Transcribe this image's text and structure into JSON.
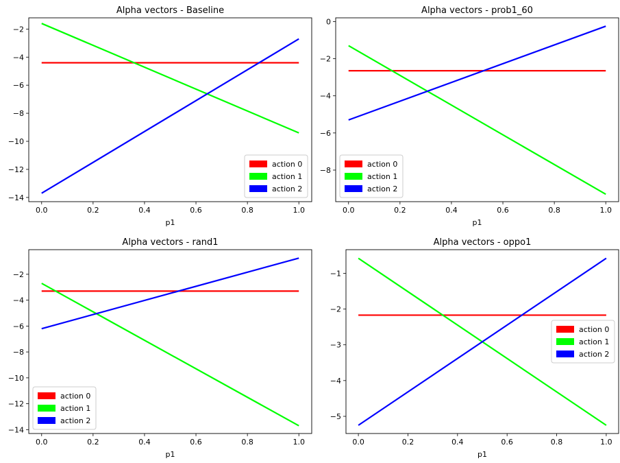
{
  "chart_data": [
    {
      "type": "line",
      "title": "Alpha vectors - Baseline",
      "xlabel": "p1",
      "ylabel": "",
      "xlim": [
        -0.05,
        1.05
      ],
      "ylim": [
        -14.3,
        -1.2
      ],
      "xticks": [
        0.0,
        0.2,
        0.4,
        0.6,
        0.8,
        1.0
      ],
      "xticklabels": [
        "0.0",
        "0.2",
        "0.4",
        "0.6",
        "0.8",
        "1.0"
      ],
      "yticks": [
        -14,
        -12,
        -10,
        -8,
        -6,
        -4,
        -2
      ],
      "yticklabels": [
        "−14",
        "−12",
        "−10",
        "−8",
        "−6",
        "−4",
        "−2"
      ],
      "grid": false,
      "legend_position": "lower right",
      "series": [
        {
          "name": "action 0",
          "color": "#ff0000",
          "x": [
            0.0,
            1.0
          ],
          "y": [
            -4.4,
            -4.4
          ]
        },
        {
          "name": "action 1",
          "color": "#00ff00",
          "x": [
            0.0,
            1.0
          ],
          "y": [
            -1.6,
            -9.4
          ]
        },
        {
          "name": "action 2",
          "color": "#0000ff",
          "x": [
            0.0,
            1.0
          ],
          "y": [
            -13.7,
            -2.7
          ]
        }
      ]
    },
    {
      "type": "line",
      "title": "Alpha vectors - prob1_60",
      "xlabel": "p1",
      "ylabel": "",
      "xlim": [
        -0.05,
        1.05
      ],
      "ylim": [
        -9.7,
        0.2
      ],
      "xticks": [
        0.0,
        0.2,
        0.4,
        0.6,
        0.8,
        1.0
      ],
      "xticklabels": [
        "0.0",
        "0.2",
        "0.4",
        "0.6",
        "0.8",
        "1.0"
      ],
      "yticks": [
        -8,
        -6,
        -4,
        -2,
        0
      ],
      "yticklabels": [
        "−8",
        "−6",
        "−4",
        "−2",
        "0"
      ],
      "grid": false,
      "legend_position": "lower left",
      "series": [
        {
          "name": "action 0",
          "color": "#ff0000",
          "x": [
            0.0,
            1.0
          ],
          "y": [
            -2.65,
            -2.65
          ]
        },
        {
          "name": "action 1",
          "color": "#00ff00",
          "x": [
            0.0,
            1.0
          ],
          "y": [
            -1.3,
            -9.3
          ]
        },
        {
          "name": "action 2",
          "color": "#0000ff",
          "x": [
            0.0,
            1.0
          ],
          "y": [
            -5.3,
            -0.25
          ]
        }
      ]
    },
    {
      "type": "line",
      "title": "Alpha vectors - rand1",
      "xlabel": "p1",
      "ylabel": "",
      "xlim": [
        -0.05,
        1.05
      ],
      "ylim": [
        -14.3,
        -0.1
      ],
      "xticks": [
        0.0,
        0.2,
        0.4,
        0.6,
        0.8,
        1.0
      ],
      "xticklabels": [
        "0.0",
        "0.2",
        "0.4",
        "0.6",
        "0.8",
        "1.0"
      ],
      "yticks": [
        -14,
        -12,
        -10,
        -8,
        -6,
        -4,
        -2
      ],
      "yticklabels": [
        "−14",
        "−12",
        "−10",
        "−8",
        "−6",
        "−4",
        "−2"
      ],
      "grid": false,
      "legend_position": "lower left",
      "series": [
        {
          "name": "action 0",
          "color": "#ff0000",
          "x": [
            0.0,
            1.0
          ],
          "y": [
            -3.3,
            -3.3
          ]
        },
        {
          "name": "action 1",
          "color": "#00ff00",
          "x": [
            0.0,
            1.0
          ],
          "y": [
            -2.7,
            -13.7
          ]
        },
        {
          "name": "action 2",
          "color": "#0000ff",
          "x": [
            0.0,
            1.0
          ],
          "y": [
            -6.2,
            -0.75
          ]
        }
      ]
    },
    {
      "type": "line",
      "title": "Alpha vectors - oppo1",
      "xlabel": "p1",
      "ylabel": "",
      "xlim": [
        -0.05,
        1.05
      ],
      "ylim": [
        -5.48,
        -0.34
      ],
      "xticks": [
        0.0,
        0.2,
        0.4,
        0.6,
        0.8,
        1.0
      ],
      "xticklabels": [
        "0.0",
        "0.2",
        "0.4",
        "0.6",
        "0.8",
        "1.0"
      ],
      "yticks": [
        -5,
        -4,
        -3,
        -2,
        -1
      ],
      "yticklabels": [
        "−5",
        "−4",
        "−3",
        "−2",
        "−1"
      ],
      "grid": false,
      "legend_position": "center right",
      "series": [
        {
          "name": "action 0",
          "color": "#ff0000",
          "x": [
            0.0,
            1.0
          ],
          "y": [
            -2.17,
            -2.17
          ]
        },
        {
          "name": "action 1",
          "color": "#00ff00",
          "x": [
            0.0,
            1.0
          ],
          "y": [
            -0.58,
            -5.25
          ]
        },
        {
          "name": "action 2",
          "color": "#0000ff",
          "x": [
            0.0,
            1.0
          ],
          "y": [
            -5.25,
            -0.58
          ]
        }
      ]
    }
  ]
}
